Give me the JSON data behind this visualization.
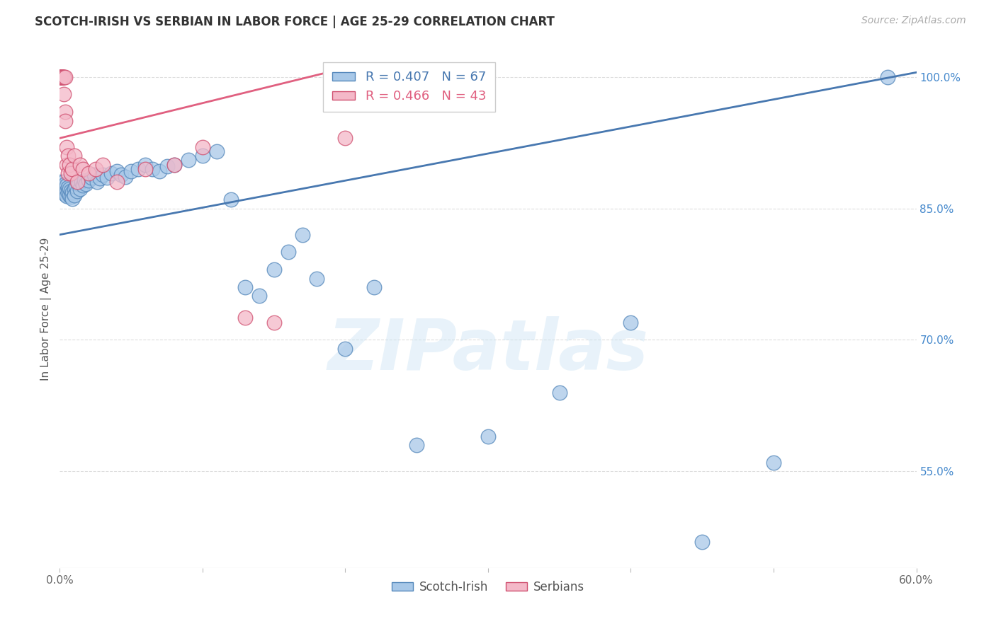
{
  "title": "SCOTCH-IRISH VS SERBIAN IN LABOR FORCE | AGE 25-29 CORRELATION CHART",
  "source": "Source: ZipAtlas.com",
  "ylabel": "In Labor Force | Age 25-29",
  "xlim": [
    0.0,
    0.6
  ],
  "ylim": [
    0.44,
    1.03
  ],
  "xtick_labels": [
    "0.0%",
    "",
    "",
    "",
    "",
    "",
    "60.0%"
  ],
  "xtick_values": [
    0.0,
    0.1,
    0.2,
    0.3,
    0.4,
    0.5,
    0.6
  ],
  "ytick_labels": [
    "55.0%",
    "70.0%",
    "85.0%",
    "100.0%"
  ],
  "ytick_values": [
    0.55,
    0.7,
    0.85,
    1.0
  ],
  "grid_color": "#dddddd",
  "scotch_irish_fill": "#a8c8e8",
  "scotch_irish_edge": "#5588bb",
  "serbian_fill": "#f4b8c8",
  "serbian_edge": "#d05070",
  "scotch_irish_line_color": "#4878b0",
  "serbian_line_color": "#e06080",
  "legend_scotch_irish": "Scotch-Irish",
  "legend_serbian": "Serbians",
  "scotch_irish_R": 0.407,
  "scotch_irish_N": 67,
  "serbian_R": 0.466,
  "serbian_N": 43,
  "watermark": "ZIPatlas",
  "scotch_irish_x": [
    0.001,
    0.002,
    0.002,
    0.003,
    0.003,
    0.003,
    0.004,
    0.004,
    0.004,
    0.005,
    0.005,
    0.005,
    0.006,
    0.006,
    0.007,
    0.007,
    0.008,
    0.008,
    0.009,
    0.009,
    0.01,
    0.01,
    0.011,
    0.012,
    0.013,
    0.014,
    0.015,
    0.016,
    0.017,
    0.018,
    0.02,
    0.022,
    0.024,
    0.026,
    0.028,
    0.03,
    0.033,
    0.036,
    0.04,
    0.043,
    0.046,
    0.05,
    0.055,
    0.06,
    0.065,
    0.07,
    0.075,
    0.08,
    0.09,
    0.1,
    0.11,
    0.12,
    0.13,
    0.14,
    0.15,
    0.16,
    0.17,
    0.18,
    0.2,
    0.22,
    0.25,
    0.3,
    0.35,
    0.4,
    0.45,
    0.5,
    0.58
  ],
  "scotch_irish_y": [
    0.88,
    0.875,
    0.87,
    0.88,
    0.875,
    0.87,
    0.878,
    0.872,
    0.866,
    0.876,
    0.87,
    0.864,
    0.874,
    0.868,
    0.872,
    0.865,
    0.87,
    0.863,
    0.868,
    0.861,
    0.872,
    0.865,
    0.875,
    0.87,
    0.878,
    0.872,
    0.88,
    0.876,
    0.882,
    0.878,
    0.882,
    0.885,
    0.888,
    0.88,
    0.884,
    0.888,
    0.885,
    0.89,
    0.892,
    0.888,
    0.886,
    0.892,
    0.895,
    0.9,
    0.895,
    0.892,
    0.898,
    0.9,
    0.905,
    0.91,
    0.915,
    0.86,
    0.76,
    0.75,
    0.78,
    0.8,
    0.82,
    0.77,
    0.69,
    0.76,
    0.58,
    0.59,
    0.64,
    0.72,
    0.47,
    0.56,
    1.0
  ],
  "serbian_x": [
    0.001,
    0.001,
    0.001,
    0.001,
    0.001,
    0.001,
    0.001,
    0.001,
    0.001,
    0.001,
    0.002,
    0.002,
    0.002,
    0.002,
    0.002,
    0.003,
    0.003,
    0.003,
    0.003,
    0.004,
    0.004,
    0.004,
    0.005,
    0.005,
    0.006,
    0.006,
    0.007,
    0.008,
    0.009,
    0.01,
    0.012,
    0.014,
    0.016,
    0.02,
    0.025,
    0.03,
    0.04,
    0.06,
    0.08,
    0.1,
    0.13,
    0.15,
    0.2
  ],
  "serbian_y": [
    1.0,
    1.0,
    1.0,
    1.0,
    1.0,
    1.0,
    1.0,
    1.0,
    1.0,
    1.0,
    1.0,
    1.0,
    1.0,
    1.0,
    1.0,
    1.0,
    1.0,
    1.0,
    0.98,
    1.0,
    0.96,
    0.95,
    0.92,
    0.9,
    0.91,
    0.89,
    0.9,
    0.89,
    0.895,
    0.91,
    0.88,
    0.9,
    0.895,
    0.89,
    0.895,
    0.9,
    0.88,
    0.895,
    0.9,
    0.92,
    0.725,
    0.72,
    0.93
  ],
  "si_trendline_x0": 0.0,
  "si_trendline_x1": 0.6,
  "si_trendline_y0": 0.82,
  "si_trendline_y1": 1.005,
  "serb_trendline_x0": 0.0,
  "serb_trendline_x1": 0.2,
  "serb_trendline_y0": 0.93,
  "serb_trendline_y1": 1.01
}
